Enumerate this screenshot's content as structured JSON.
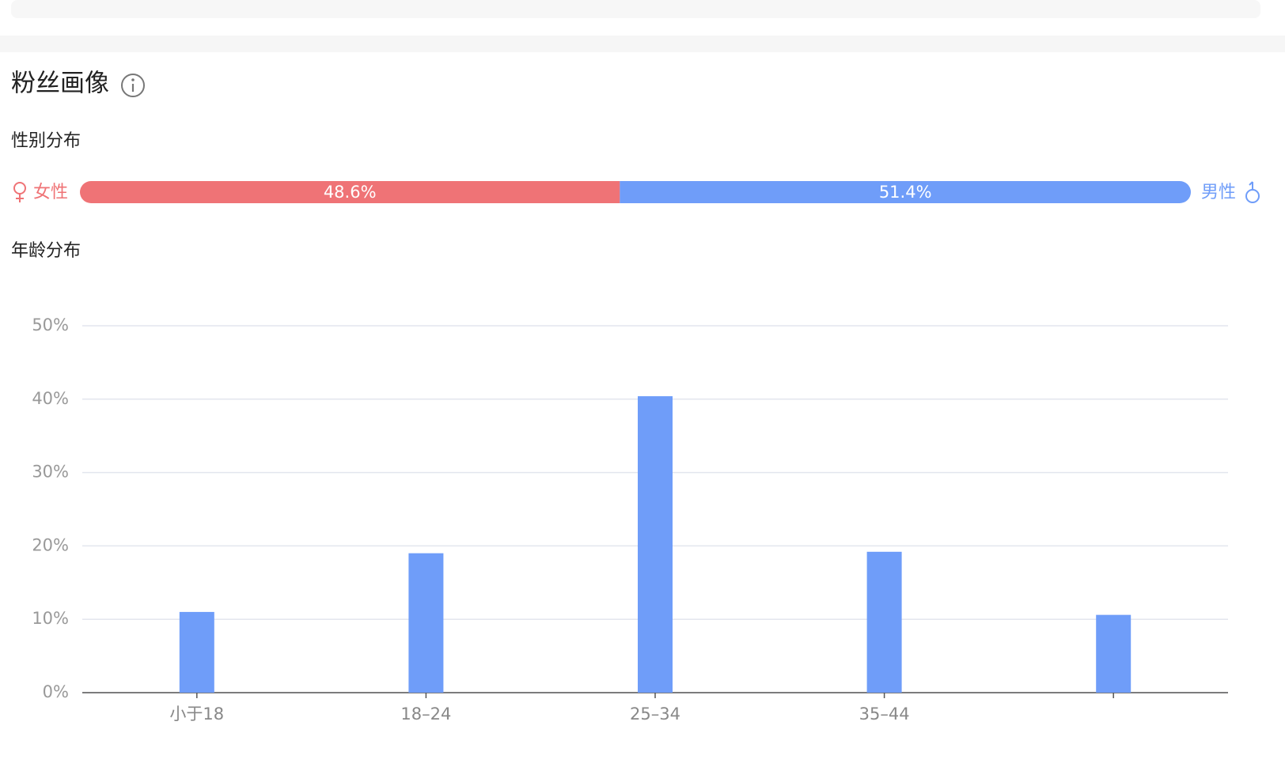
{
  "header": {
    "title": "粉丝画像"
  },
  "gender": {
    "title": "性别分布",
    "female_label": "女性",
    "male_label": "男性",
    "values": [
      48.6,
      51.4
    ],
    "value_labels": [
      "48.6%",
      "51.4%"
    ],
    "colors": [
      "#ef7376",
      "#6f9df9"
    ]
  },
  "age": {
    "title": "年龄分布"
  },
  "chart_data": {
    "type": "bar",
    "categories": [
      "小于18",
      "18–24",
      "25–34",
      "35–44",
      null
    ],
    "values": [
      11,
      19,
      40.4,
      19.2,
      10.6
    ],
    "color": "#6f9df9",
    "ylim": [
      0,
      50
    ],
    "yticks": [
      {
        "value": 0,
        "label": "0%"
      },
      {
        "value": 10,
        "label": "10%"
      },
      {
        "value": 20,
        "label": "20%"
      },
      {
        "value": 30,
        "label": "30%"
      },
      {
        "value": 40,
        "label": "40%"
      },
      {
        "value": 50,
        "label": "50%"
      }
    ],
    "grid": true
  }
}
